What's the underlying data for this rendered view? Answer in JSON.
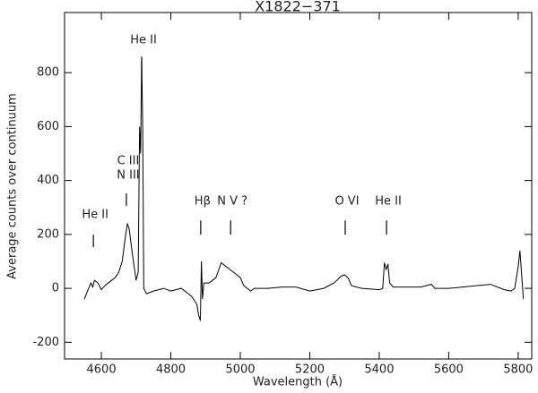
{
  "chart_data": {
    "type": "line",
    "title": "X1822−371",
    "x_label": "Wavelength (Å)",
    "y_label": "Average counts over continuum",
    "x": [
      4551,
      4560,
      4570,
      4575,
      4580,
      4590,
      4600,
      4610,
      4620,
      4640,
      4650,
      4660,
      4670,
      4675,
      4680,
      4690,
      4700,
      4706,
      4710,
      4713,
      4716,
      4719,
      4722,
      4730,
      4750,
      4780,
      4800,
      4830,
      4860,
      4875,
      4880,
      4885,
      4888,
      4891,
      4895,
      4910,
      4930,
      4945,
      4960,
      4980,
      5000,
      5010,
      5020,
      5030,
      5040,
      5080,
      5120,
      5160,
      5200,
      5240,
      5270,
      5290,
      5300,
      5310,
      5320,
      5350,
      5400,
      5410,
      5415,
      5420,
      5425,
      5430,
      5440,
      5480,
      5520,
      5550,
      5560,
      5600,
      5640,
      5680,
      5720,
      5760,
      5780,
      5790,
      5800,
      5805,
      5810,
      5815
    ],
    "values": [
      -40,
      -10,
      20,
      5,
      30,
      20,
      -5,
      10,
      20,
      40,
      60,
      100,
      200,
      240,
      220,
      120,
      30,
      60,
      600,
      500,
      860,
      600,
      0,
      -20,
      -10,
      0,
      -10,
      0,
      -30,
      -60,
      -100,
      -120,
      100,
      -40,
      20,
      20,
      40,
      95,
      80,
      60,
      40,
      10,
      0,
      -10,
      0,
      0,
      5,
      5,
      -10,
      0,
      20,
      45,
      50,
      40,
      10,
      0,
      -5,
      0,
      95,
      70,
      90,
      20,
      5,
      5,
      5,
      15,
      0,
      0,
      5,
      10,
      15,
      -5,
      -10,
      0,
      80,
      140,
      50,
      -40
    ],
    "color": "#000000",
    "xlim": [
      4494,
      5839
    ],
    "ylim": [
      -262,
      1023
    ],
    "xticks": [
      4600,
      4800,
      5000,
      5200,
      5400,
      5600,
      5800
    ],
    "yticks": [
      -200,
      0,
      200,
      400,
      600,
      800
    ],
    "annotations": [
      {
        "label": "He II",
        "x": 4577,
        "y": 272,
        "mark": [
          153,
          199
        ]
      },
      {
        "label": "C III",
        "x": 4672,
        "y": 472,
        "mark": [
          306,
          352
        ]
      },
      {
        "label": "N III",
        "x": 4672,
        "y": 419
      },
      {
        "label": "He II",
        "x": 4716,
        "y": 920,
        "mark": [
          803,
          857
        ]
      },
      {
        "label": "Hβ",
        "x": 4886,
        "y": 322,
        "mark": [
          199,
          252
        ]
      },
      {
        "label": "N V ?",
        "x": 4972,
        "y": 322,
        "mark": [
          199,
          252
        ]
      },
      {
        "label": "O VI",
        "x": 5302,
        "y": 322,
        "mark": [
          199,
          252
        ]
      },
      {
        "label": "He II",
        "x": 5421,
        "y": 322,
        "mark": [
          199,
          252
        ]
      }
    ]
  }
}
